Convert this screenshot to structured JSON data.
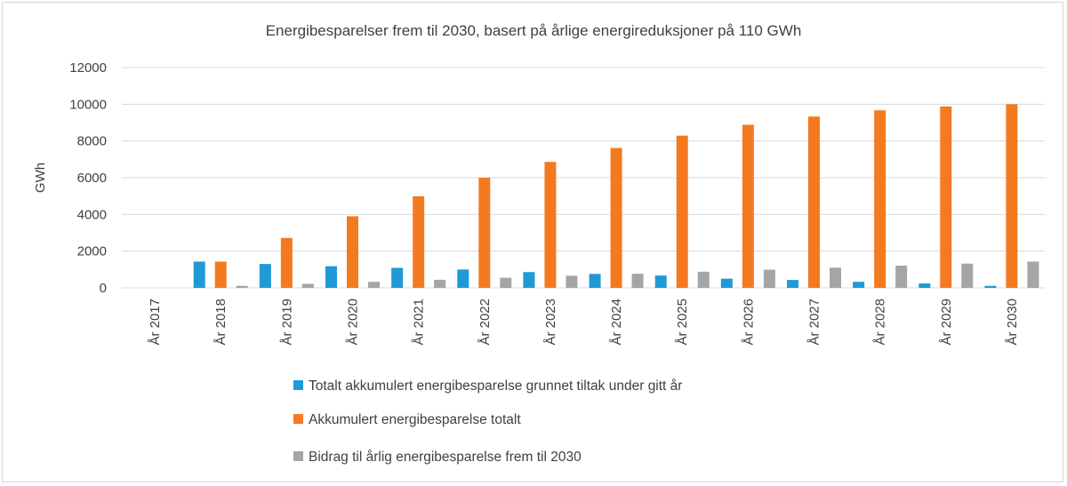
{
  "chart_data": {
    "type": "bar",
    "title": "Energibesparelser frem til 2030, basert på årlige energireduksjoner på 110 GWh",
    "xlabel": "",
    "ylabel": "GWh",
    "ylim": [
      0,
      12000
    ],
    "yticks": [
      "0",
      "2000",
      "4000",
      "6000",
      "8000",
      "10000",
      "12000"
    ],
    "grid": true,
    "legend_position": "bottom",
    "categories": [
      "År 2017",
      "År 2018",
      "År 2019",
      "År 2020",
      "År 2021",
      "År 2022",
      "År 2023",
      "År 2024",
      "År 2025",
      "År 2026",
      "År 2027",
      "År 2028",
      "År 2029",
      "År 2030"
    ],
    "series": [
      {
        "name": "Totalt akkumulert energibesparelse grunnet tiltak under gitt år",
        "color": "#1f9ad6",
        "values": [
          0,
          1430,
          1300,
          1180,
          1090,
          1000,
          860,
          760,
          670,
          500,
          430,
          330,
          240,
          110
        ]
      },
      {
        "name": "Akkumulert energibesparelse totalt",
        "color": "#f47a20",
        "values": [
          0,
          1430,
          2720,
          3900,
          4990,
          6000,
          6860,
          7620,
          8290,
          8880,
          9330,
          9670,
          9880,
          10000
        ]
      },
      {
        "name": "Bidrag til årlig energibesparelse frem til 2030",
        "color": "#a5a5a5",
        "values": [
          0,
          110,
          220,
          330,
          440,
          550,
          660,
          770,
          880,
          990,
          1100,
          1210,
          1320,
          1430
        ]
      }
    ]
  }
}
